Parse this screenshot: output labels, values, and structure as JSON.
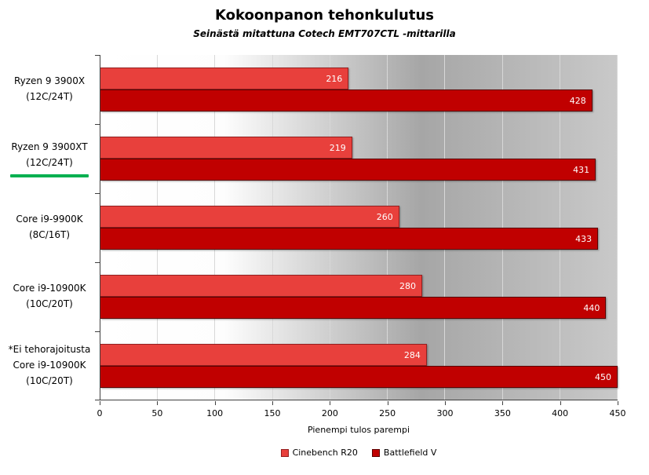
{
  "chart_data": {
    "type": "bar",
    "orientation": "horizontal",
    "title": "Kokoonpanon tehonkulutus",
    "subtitle": "Seinästä mitattuna Cotech EMT707CTL -mittarilla",
    "xlabel": "Pienempi tulos parempi",
    "xlim": [
      0,
      450
    ],
    "xticks": [
      0,
      50,
      100,
      150,
      200,
      250,
      300,
      350,
      400,
      450
    ],
    "grid": true,
    "legend_position": "bottom",
    "highlight_color": "#00b050",
    "categories": [
      {
        "lines": [
          "Ryzen 9 3900X",
          "(12C/24T)"
        ],
        "highlight": false
      },
      {
        "lines": [
          "Ryzen 9 3900XT",
          "(12C/24T)"
        ],
        "highlight": true
      },
      {
        "lines": [
          "Core i9-9900K",
          "(8C/16T)"
        ],
        "highlight": false
      },
      {
        "lines": [
          "Core i9-10900K",
          "(10C/20T)"
        ],
        "highlight": false
      },
      {
        "lines": [
          "*Ei tehorajoitusta",
          "Core i9-10900K",
          "(10C/20T)"
        ],
        "highlight": false
      }
    ],
    "series": [
      {
        "name": "Cinebench R20",
        "color": "#e8403c",
        "border": "#941f1f",
        "values": [
          216,
          219,
          260,
          280,
          284
        ]
      },
      {
        "name": "Battlefield V",
        "color": "#c00000",
        "border": "#5c0000",
        "values": [
          428,
          431,
          433,
          440,
          450
        ]
      }
    ]
  }
}
